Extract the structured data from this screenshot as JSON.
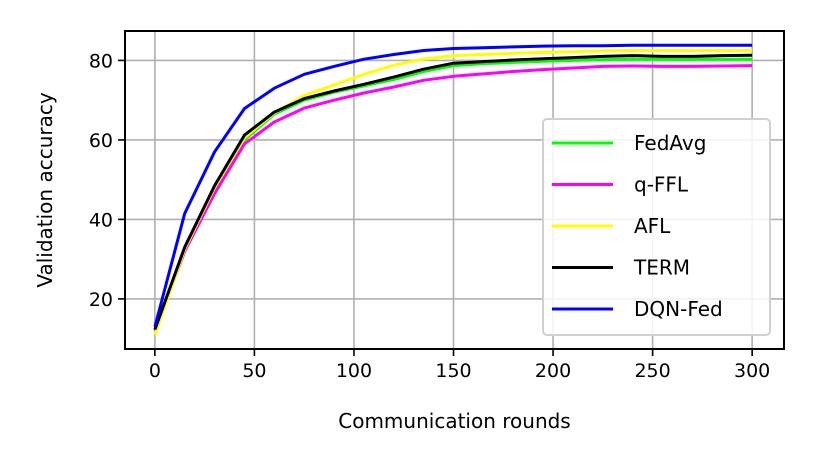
{
  "chart_data": {
    "type": "line",
    "title": "",
    "xlabel": "Communication rounds",
    "ylabel": "Validation accuracy",
    "xlim": [
      -15,
      316
    ],
    "ylim": [
      7.4,
      87.4
    ],
    "xticks": [
      0,
      50,
      100,
      150,
      200,
      250,
      300
    ],
    "yticks": [
      20,
      40,
      60,
      80
    ],
    "grid": true,
    "legend_position": "lower right",
    "x": [
      0,
      15,
      30,
      45,
      60,
      75,
      90,
      105,
      120,
      135,
      150,
      165,
      180,
      195,
      210,
      225,
      240,
      255,
      270,
      285,
      300
    ],
    "series": [
      {
        "name": "FedAvg",
        "color": "#00ff00",
        "values": [
          12,
          32,
          47.5,
          60,
          66.5,
          70,
          72,
          73.6,
          75.2,
          77.2,
          78.7,
          79.2,
          79.5,
          79.8,
          80,
          80.2,
          80.3,
          80.3,
          80.3,
          80.3,
          80.3
        ]
      },
      {
        "name": "q-FFL",
        "color": "#ff00ff",
        "values": [
          12,
          32,
          46.5,
          59,
          64.5,
          68,
          70,
          71.8,
          73.3,
          75,
          76,
          76.6,
          77.2,
          77.7,
          78.1,
          78.5,
          78.6,
          78.5,
          78.5,
          78.6,
          78.7
        ]
      },
      {
        "name": "AFL",
        "color": "#ffff00",
        "values": [
          11,
          32.5,
          48,
          60.5,
          66.8,
          71.2,
          73.8,
          76.5,
          78.8,
          80.3,
          81.2,
          81.5,
          81.8,
          82,
          82.2,
          82.4,
          82.5,
          82.5,
          82.5,
          82.5,
          82.5
        ]
      },
      {
        "name": "TERM",
        "color": "#000000",
        "values": [
          12.3,
          33,
          48.5,
          61.2,
          67,
          70.4,
          72.3,
          74,
          75.8,
          77.8,
          79.3,
          79.7,
          80.1,
          80.4,
          80.7,
          81,
          81.2,
          81,
          81,
          81.2,
          81.3
        ]
      },
      {
        "name": "DQN-Fed",
        "color": "#0000ff",
        "values": [
          13,
          41.5,
          57,
          67.9,
          73,
          76.5,
          78.5,
          80.3,
          81.5,
          82.5,
          83,
          83.2,
          83.4,
          83.6,
          83.7,
          83.7,
          83.8,
          83.8,
          83.8,
          83.8,
          83.8
        ]
      }
    ]
  }
}
